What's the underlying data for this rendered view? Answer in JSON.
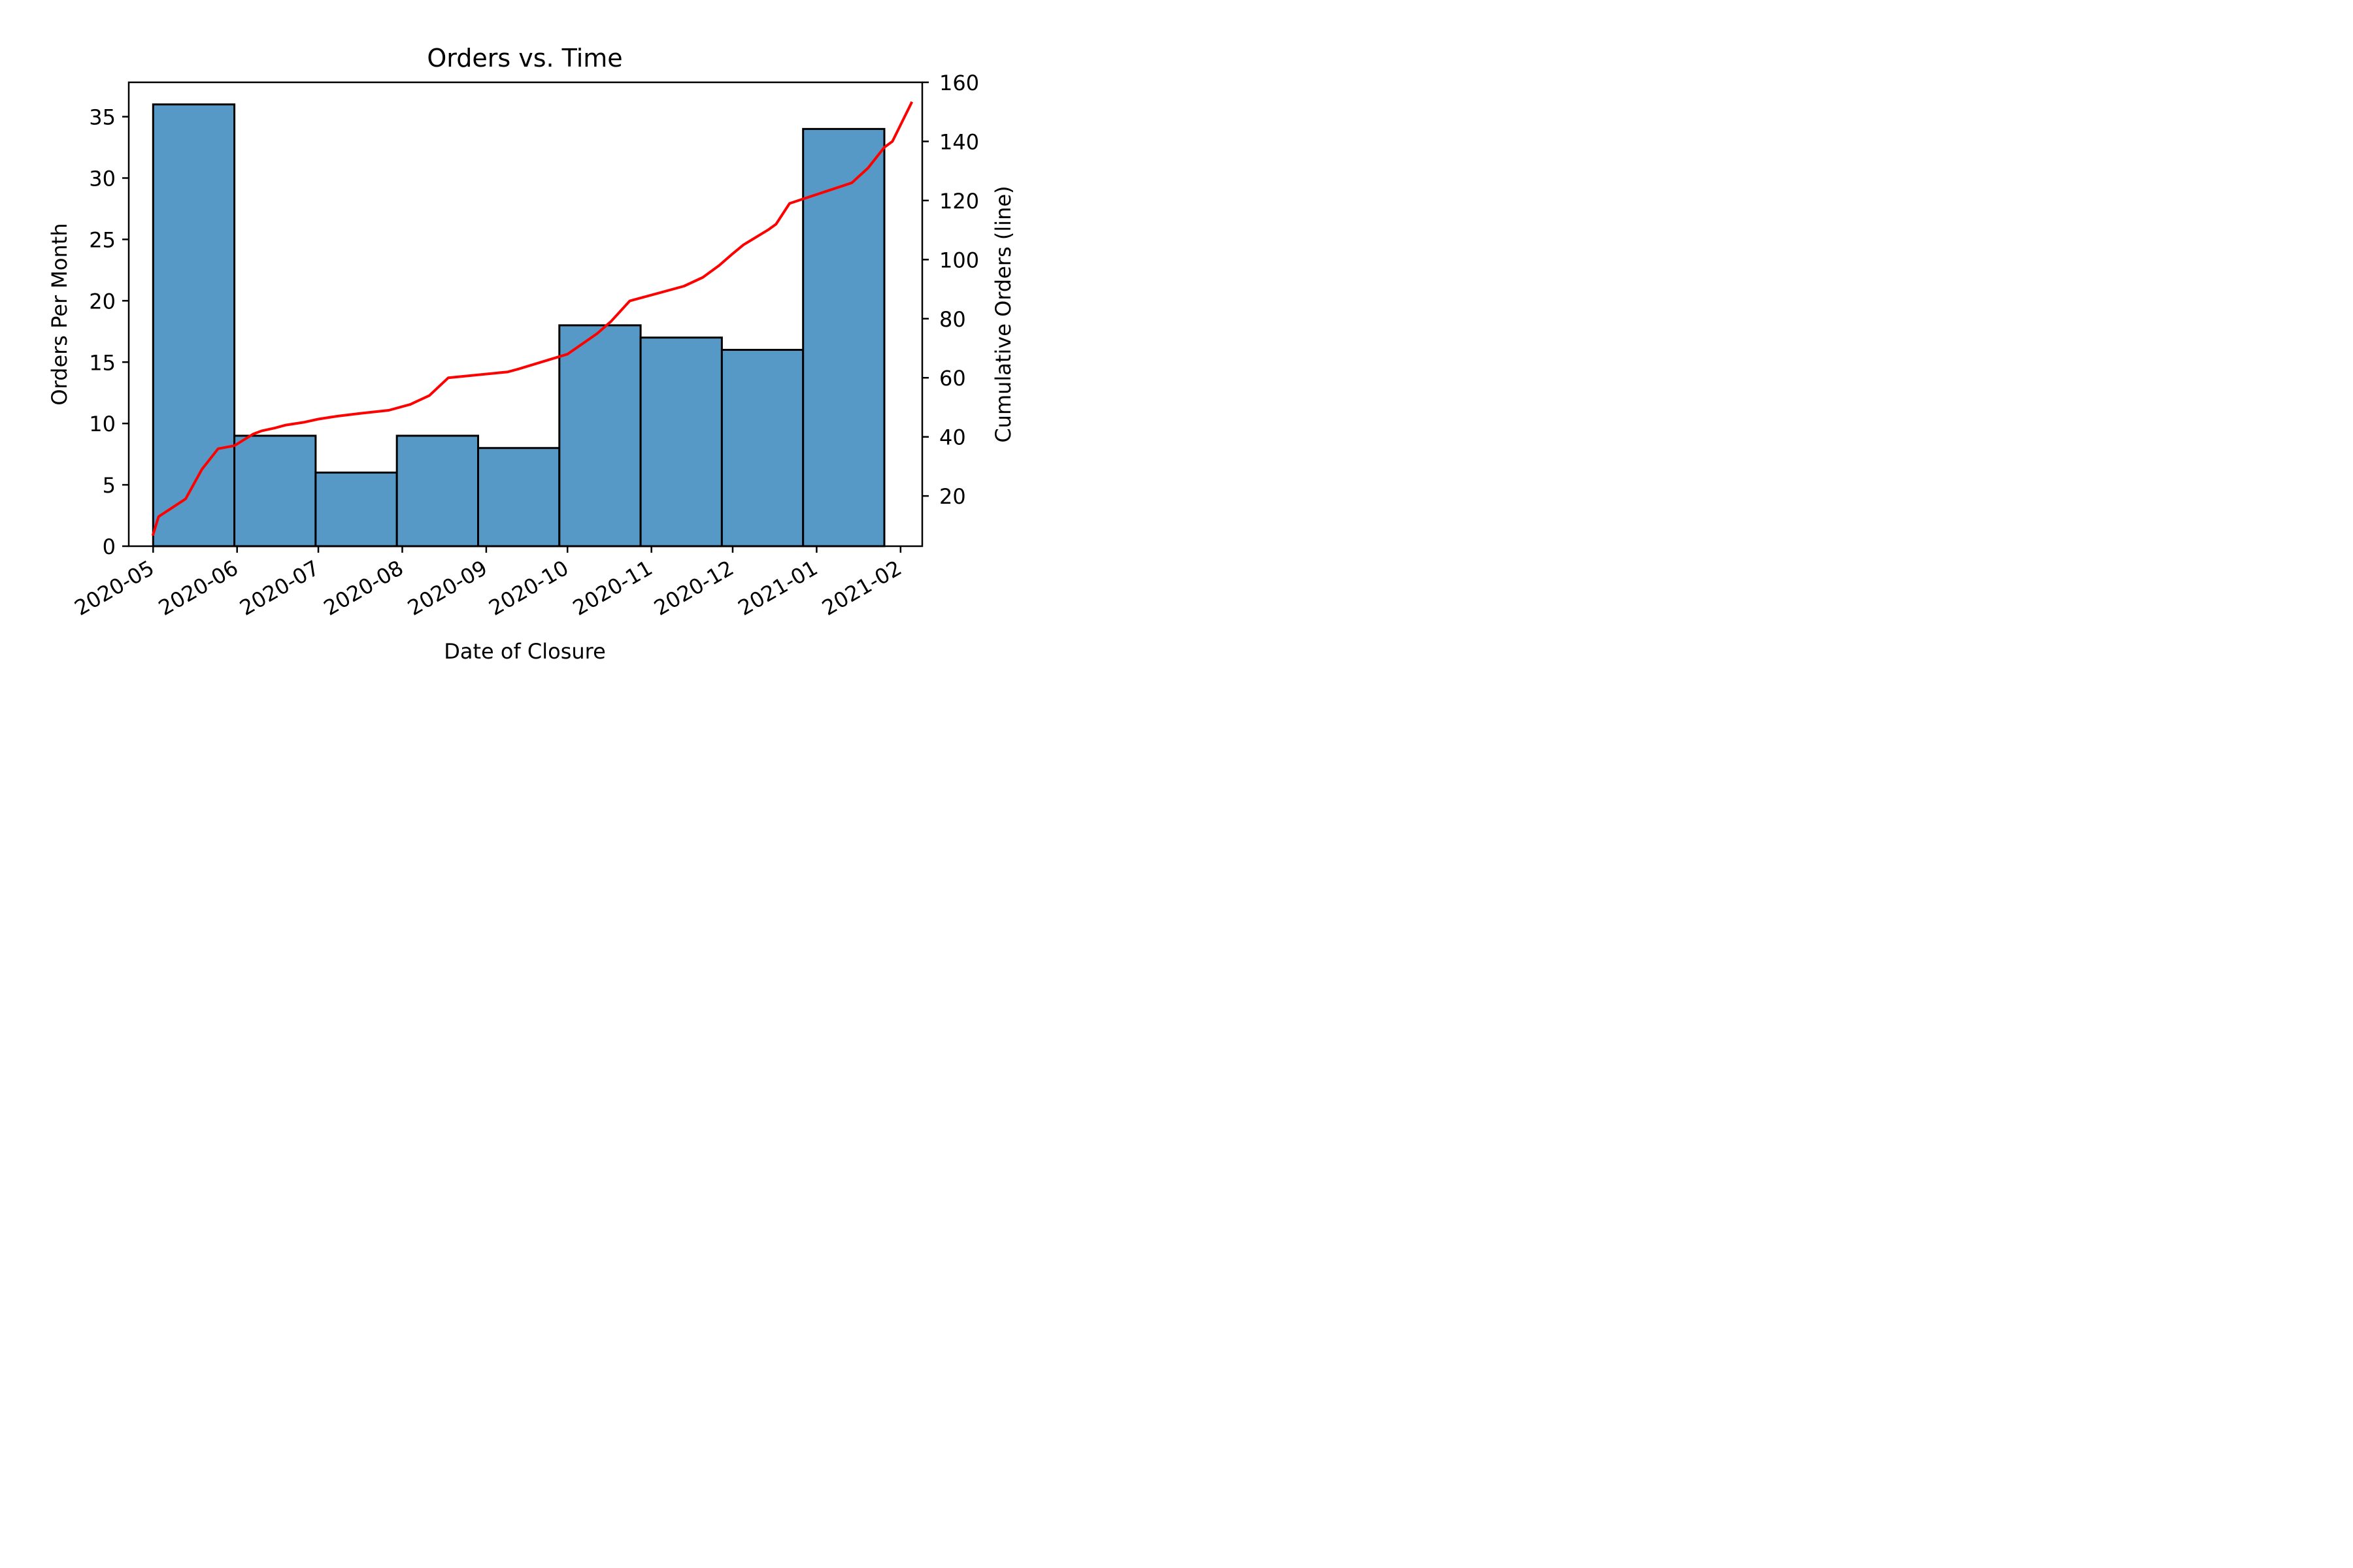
{
  "chart_data": {
    "type": "bar",
    "title": "Orders vs. Time",
    "xlabel": "Date of Closure",
    "ylabel": "Orders Per Month",
    "ylabel_right": "Cumulative Orders (line)",
    "x_tick_labels": [
      "2020-05",
      "2020-06",
      "2020-07",
      "2020-08",
      "2020-09",
      "2020-10",
      "2020-11",
      "2020-12",
      "2021-01",
      "2021-02"
    ],
    "y_ticks_left": [
      0,
      5,
      10,
      15,
      20,
      25,
      30,
      35
    ],
    "y_ticks_right": [
      20,
      40,
      60,
      80,
      100,
      120,
      140,
      160
    ],
    "ylim": [
      0,
      37.8
    ],
    "ylim_right": [
      3,
      160
    ],
    "xlim": [
      "2020-04-22",
      "2021-02-09"
    ],
    "grid": false,
    "series": [
      {
        "kind": "histogram",
        "color": "#5799c6",
        "edgecolor": "#000000",
        "bins": [
          {
            "start": "2020-05-01",
            "end": "2020-05-31",
            "value": 36
          },
          {
            "start": "2020-05-31",
            "end": "2020-06-30",
            "value": 9
          },
          {
            "start": "2020-06-30",
            "end": "2020-07-30",
            "value": 6
          },
          {
            "start": "2020-07-30",
            "end": "2020-08-29",
            "value": 9
          },
          {
            "start": "2020-08-29",
            "end": "2020-09-28",
            "value": 8
          },
          {
            "start": "2020-09-28",
            "end": "2020-10-28",
            "value": 18
          },
          {
            "start": "2020-10-28",
            "end": "2020-11-27",
            "value": 17
          },
          {
            "start": "2020-11-27",
            "end": "2020-12-27",
            "value": 16
          },
          {
            "start": "2020-12-27",
            "end": "2021-01-26",
            "value": 34
          }
        ]
      },
      {
        "kind": "line",
        "axis": "right",
        "color": "#ff0000",
        "points": [
          [
            "2020-05-01",
            7
          ],
          [
            "2020-05-03",
            13
          ],
          [
            "2020-05-13",
            19
          ],
          [
            "2020-05-19",
            29
          ],
          [
            "2020-05-25",
            36
          ],
          [
            "2020-05-31",
            37
          ],
          [
            "2020-06-07",
            41
          ],
          [
            "2020-06-10",
            42
          ],
          [
            "2020-06-15",
            43
          ],
          [
            "2020-06-19",
            44
          ],
          [
            "2020-06-26",
            45
          ],
          [
            "2020-07-01",
            46
          ],
          [
            "2020-07-08",
            47
          ],
          [
            "2020-07-17",
            48
          ],
          [
            "2020-07-27",
            49
          ],
          [
            "2020-08-04",
            51
          ],
          [
            "2020-08-11",
            54
          ],
          [
            "2020-08-18",
            60
          ],
          [
            "2020-09-09",
            62
          ],
          [
            "2020-09-13",
            63
          ],
          [
            "2020-10-01",
            68
          ],
          [
            "2020-10-12",
            75
          ],
          [
            "2020-10-17",
            79
          ],
          [
            "2020-10-24",
            86
          ],
          [
            "2020-11-13",
            91
          ],
          [
            "2020-11-20",
            94
          ],
          [
            "2020-11-26",
            98
          ],
          [
            "2020-12-01",
            102
          ],
          [
            "2020-12-05",
            105
          ],
          [
            "2020-12-14",
            110
          ],
          [
            "2020-12-17",
            112
          ],
          [
            "2020-12-22",
            119
          ],
          [
            "2021-01-14",
            126
          ],
          [
            "2021-01-20",
            131
          ],
          [
            "2021-01-26",
            138
          ],
          [
            "2021-01-29",
            140
          ],
          [
            "2021-02-05",
            153
          ]
        ]
      }
    ]
  }
}
